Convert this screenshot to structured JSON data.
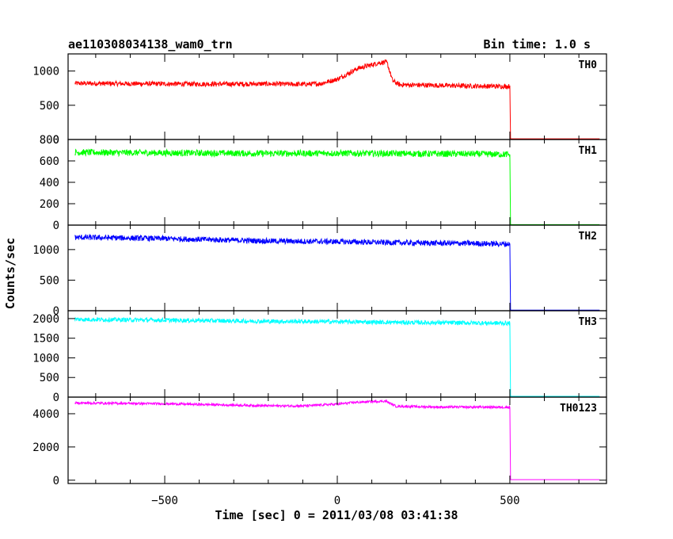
{
  "chart_data": {
    "type": "line",
    "title": "ae110308034138_wam0_trn",
    "bin_time_label": "Bin time: 1.0 s",
    "xlabel": "Time [sec] 0 = 2011/03/08 03:41:38",
    "ylabel": "Counts/sec",
    "xlim": [
      -780,
      780
    ],
    "x_ticks": [
      -500,
      0,
      500
    ],
    "grid": false,
    "panels": [
      {
        "name": "TH0",
        "color": "#ff0000",
        "ylim": [
          0,
          1250
        ],
        "y_ticks": [
          0,
          500,
          1000
        ],
        "series": [
          [
            -760,
            820
          ],
          [
            -600,
            815
          ],
          [
            -400,
            810
          ],
          [
            -200,
            812
          ],
          [
            -100,
            805
          ],
          [
            -50,
            815
          ],
          [
            0,
            880
          ],
          [
            30,
            960
          ],
          [
            60,
            1040
          ],
          [
            100,
            1090
          ],
          [
            120,
            1120
          ],
          [
            140,
            1130
          ],
          [
            145,
            1110
          ],
          [
            160,
            860
          ],
          [
            180,
            800
          ],
          [
            300,
            790
          ],
          [
            400,
            780
          ],
          [
            490,
            775
          ],
          [
            500,
            780
          ],
          [
            502,
            10
          ],
          [
            760,
            10
          ]
        ],
        "noise": 35
      },
      {
        "name": "TH1",
        "color": "#00ff00",
        "ylim": [
          0,
          800
        ],
        "y_ticks": [
          0,
          200,
          400,
          600,
          800
        ],
        "series": [
          [
            -760,
            680
          ],
          [
            -500,
            675
          ],
          [
            -200,
            670
          ],
          [
            0,
            672
          ],
          [
            200,
            668
          ],
          [
            400,
            665
          ],
          [
            500,
            660
          ],
          [
            502,
            5
          ],
          [
            760,
            5
          ]
        ],
        "noise": 30
      },
      {
        "name": "TH2",
        "color": "#0000ff",
        "ylim": [
          0,
          1400
        ],
        "y_ticks": [
          0,
          500,
          1000
        ],
        "series": [
          [
            -760,
            1200
          ],
          [
            -500,
            1180
          ],
          [
            -200,
            1140
          ],
          [
            0,
            1130
          ],
          [
            200,
            1110
          ],
          [
            400,
            1100
          ],
          [
            500,
            1090
          ],
          [
            502,
            10
          ],
          [
            760,
            10
          ]
        ],
        "noise": 45
      },
      {
        "name": "TH3",
        "color": "#00ffff",
        "ylim": [
          0,
          2200
        ],
        "y_ticks": [
          0,
          500,
          1000,
          1500,
          2000
        ],
        "series": [
          [
            -760,
            1980
          ],
          [
            -500,
            1960
          ],
          [
            -200,
            1930
          ],
          [
            0,
            1920
          ],
          [
            200,
            1900
          ],
          [
            400,
            1890
          ],
          [
            500,
            1880
          ],
          [
            502,
            20
          ],
          [
            760,
            20
          ]
        ],
        "noise": 55
      },
      {
        "name": "TH0123",
        "color": "#ff00ff",
        "ylim": [
          -200,
          5000
        ],
        "y_ticks": [
          0,
          2000,
          4000
        ],
        "series": [
          [
            -760,
            4650
          ],
          [
            -500,
            4600
          ],
          [
            -200,
            4480
          ],
          [
            -100,
            4470
          ],
          [
            0,
            4580
          ],
          [
            50,
            4680
          ],
          [
            100,
            4730
          ],
          [
            140,
            4760
          ],
          [
            170,
            4450
          ],
          [
            300,
            4400
          ],
          [
            450,
            4400
          ],
          [
            500,
            4390
          ],
          [
            502,
            30
          ],
          [
            760,
            30
          ]
        ],
        "noise": 70
      }
    ]
  }
}
